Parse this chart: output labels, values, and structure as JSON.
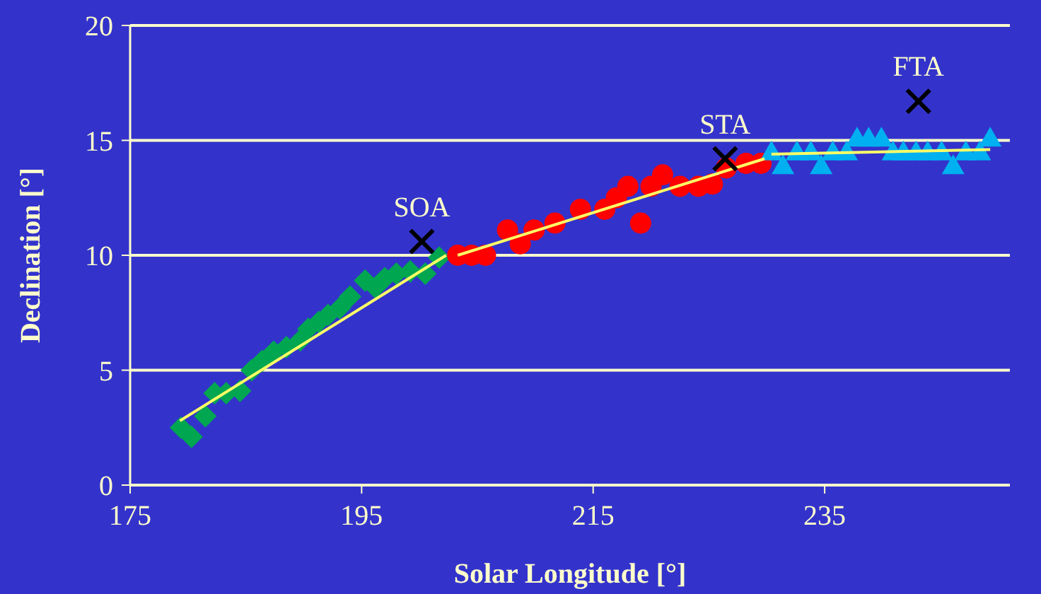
{
  "chart_data": {
    "type": "scatter",
    "xlabel": "Solar Longitude [°]",
    "ylabel": "Declination [°]",
    "xlim": [
      175,
      251
    ],
    "ylim": [
      0,
      20
    ],
    "xticks": [
      175,
      195,
      215,
      235
    ],
    "yticks": [
      0,
      5,
      10,
      15,
      20
    ],
    "grid": "y",
    "series": [
      {
        "color": "#00a650",
        "marker": "diamond",
        "x": [
          179.4,
          180.3,
          181.5,
          182.3,
          183.3,
          184.5,
          185.5,
          186.4,
          187.4,
          188.5,
          189.7,
          190.4,
          191.3,
          192.1,
          193.1,
          194.0,
          195.3,
          196.2,
          197.0,
          198.0,
          199.2,
          200.5,
          201.7
        ],
        "values": [
          2.5,
          2.1,
          3.0,
          4.0,
          4.0,
          4.1,
          5.0,
          5.4,
          5.8,
          6.0,
          6.3,
          6.8,
          7.1,
          7.4,
          7.7,
          8.2,
          8.9,
          8.6,
          9.0,
          9.2,
          9.3,
          9.2,
          9.9
        ]
      },
      {
        "color": "#ff0000",
        "marker": "circle",
        "x": [
          203.3,
          204.5,
          205.7,
          207.6,
          208.7,
          209.9,
          211.7,
          213.9,
          216.0,
          217.0,
          218.0,
          219.1,
          220.0,
          221.0,
          222.5,
          224.1,
          225.3,
          226.5,
          228.2,
          229.5
        ],
        "values": [
          10.0,
          10.0,
          10.0,
          11.1,
          10.5,
          11.1,
          11.4,
          12.0,
          12.0,
          12.5,
          13.0,
          11.4,
          13.0,
          13.5,
          13.0,
          13.0,
          13.1,
          13.8,
          14.0,
          14.0
        ]
      },
      {
        "color": "#00b0f0",
        "marker": "triangle",
        "x": [
          230.4,
          231.4,
          232.6,
          233.8,
          234.7,
          235.7,
          236.9,
          237.8,
          238.8,
          239.9,
          240.9,
          241.8,
          242.9,
          243.9,
          245.1,
          246.1,
          247.2,
          248.4,
          249.3
        ],
        "values": [
          14.5,
          13.9,
          14.5,
          14.5,
          13.9,
          14.5,
          14.5,
          15.1,
          15.1,
          15.1,
          14.5,
          14.5,
          14.5,
          14.5,
          14.5,
          13.9,
          14.5,
          14.5,
          15.1
        ]
      },
      {
        "type": "line",
        "color": "#ffff66",
        "marker": "none",
        "x": [
          179.3,
          202.3
        ],
        "values": [
          2.8,
          10.0
        ]
      },
      {
        "type": "line",
        "color": "#ffff66",
        "marker": "none",
        "x": [
          203.3,
          229.8
        ],
        "values": [
          10.0,
          14.2
        ]
      },
      {
        "type": "line",
        "color": "#ffff66",
        "marker": "none",
        "x": [
          230.4,
          249.3
        ],
        "values": [
          14.4,
          14.6
        ]
      },
      {
        "color": "#000000",
        "marker": "cross",
        "x": [
          200.2,
          226.4,
          243.1
        ],
        "values": [
          10.6,
          14.2,
          16.7
        ]
      }
    ],
    "annotations": [
      {
        "text": "SOA",
        "x": 200.2,
        "y": 10.6
      },
      {
        "text": "STA",
        "x": 226.4,
        "y": 14.2
      },
      {
        "text": "FTA",
        "x": 243.1,
        "y": 16.7
      }
    ]
  }
}
